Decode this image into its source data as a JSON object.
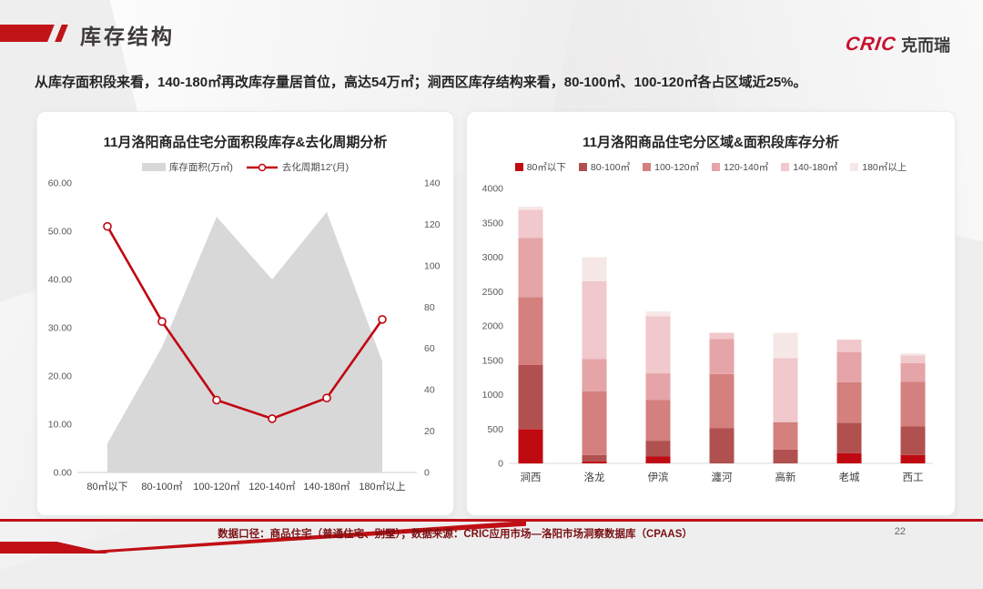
{
  "header": {
    "title": "库存结构",
    "logo_cric": "CRIC",
    "logo_cn": "克而瑞"
  },
  "subtitle": "从库存面积段来看，140-180㎡再改库存量居首位，高达54万㎡；涧西区库存结构来看，80-100㎡、100-120㎡各占区域近25%。",
  "footer": {
    "note": "数据口径：商品住宅（普通住宅、别墅）；数据来源：CRIC应用市场—洛阳市场洞察数据库（CPAAS）",
    "page": "22"
  },
  "colors": {
    "accent_red": "#c01015",
    "line_red": "#c00712",
    "area_gray": "#d8d8d8",
    "axis_text": "#595959",
    "category_text": "#404040"
  },
  "chart_data": [
    {
      "type": "area",
      "title": "11月洛阳商品住宅分面积段库存&去化周期分析",
      "categories": [
        "80㎡以下",
        "80-100㎡",
        "100-120㎡",
        "120-140㎡",
        "140-180㎡",
        "180㎡以上"
      ],
      "series": [
        {
          "name": "库存面积(万㎡)",
          "kind": "area",
          "axis": "left",
          "color": "#d8d8d8",
          "values": [
            6,
            26,
            53,
            40,
            54,
            23
          ]
        },
        {
          "name": "去化周期12'(月)",
          "kind": "line",
          "axis": "right",
          "color": "#c00712",
          "values": [
            119,
            73,
            35,
            26,
            36,
            74
          ]
        }
      ],
      "left_axis": {
        "min": 0,
        "max": 60,
        "step": 10,
        "labels": [
          "0.00",
          "10.00",
          "20.00",
          "30.00",
          "40.00",
          "50.00",
          "60.00"
        ]
      },
      "right_axis": {
        "min": 0,
        "max": 140,
        "step": 20,
        "labels": [
          "0",
          "20",
          "40",
          "60",
          "80",
          "100",
          "120",
          "140"
        ]
      },
      "grid": false,
      "legend_position": "top"
    },
    {
      "type": "bar",
      "stacked": true,
      "title": "11月洛阳商品住宅分区域&面积段库存分析",
      "categories": [
        "涧西",
        "洛龙",
        "伊滨",
        "瀍河",
        "高新",
        "老城",
        "西工"
      ],
      "series": [
        {
          "name": "80㎡以下",
          "color": "#c00a11",
          "values": [
            500,
            30,
            100,
            0,
            0,
            150,
            120
          ]
        },
        {
          "name": "80-100㎡",
          "color": "#b05150",
          "values": [
            930,
            90,
            230,
            510,
            200,
            440,
            420
          ]
        },
        {
          "name": "100-120㎡",
          "color": "#d4807e",
          "values": [
            990,
            930,
            590,
            790,
            400,
            590,
            650
          ]
        },
        {
          "name": "120-140㎡",
          "color": "#e5a4a7",
          "values": [
            860,
            470,
            390,
            510,
            0,
            440,
            270
          ]
        },
        {
          "name": "140-180㎡",
          "color": "#f1c8cb",
          "values": [
            410,
            1130,
            830,
            90,
            930,
            180,
            110
          ]
        },
        {
          "name": "180㎡以上",
          "color": "#f5e8e7",
          "values": [
            45,
            350,
            70,
            0,
            370,
            0,
            30
          ]
        }
      ],
      "totals": [
        3735,
        3000,
        2210,
        1900,
        1900,
        1800,
        1600
      ],
      "y_axis": {
        "min": 0,
        "max": 4000,
        "step": 500,
        "labels": [
          "0",
          "500",
          "1000",
          "1500",
          "2000",
          "2500",
          "3000",
          "3500",
          "4000"
        ]
      },
      "grid": false,
      "legend_position": "top"
    }
  ]
}
